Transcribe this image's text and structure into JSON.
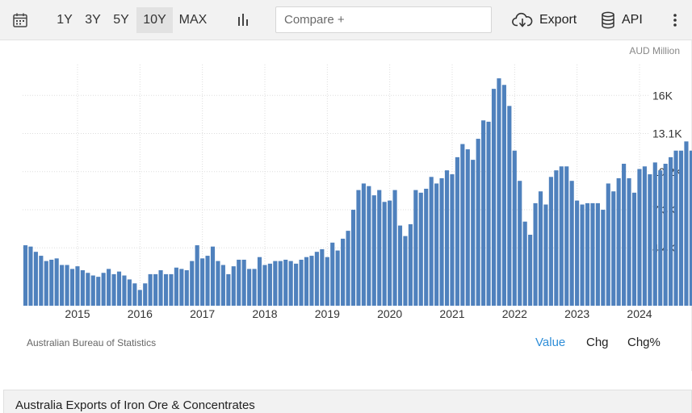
{
  "toolbar": {
    "calendar_icon": "calendar-icon",
    "ranges": [
      "1Y",
      "3Y",
      "5Y",
      "10Y",
      "MAX"
    ],
    "active_range": "10Y",
    "chart_type_icon": "bar-chart-icon",
    "compare_placeholder": "Compare +",
    "export_label": "Export",
    "export_icon": "cloud-download-icon",
    "api_label": "API",
    "api_icon": "database-icon",
    "more_icon": "vertical-ellipsis-icon"
  },
  "source": "Australian Bureau of Statistics",
  "view_tabs": [
    "Value",
    "Chg",
    "Chg%"
  ],
  "active_tab": "Value",
  "footer_title": "Australia Exports of Iron Ore & Concentrates",
  "colors": {
    "bar": "#4f81bd",
    "active_tab": "#2f8ed8",
    "grid": "#dddddd"
  },
  "chart_data": {
    "type": "bar",
    "unit_label": "AUD Million",
    "x_tick_labels": [
      "2015",
      "2016",
      "2017",
      "2018",
      "2019",
      "2020",
      "2021",
      "2022",
      "2023",
      "2024"
    ],
    "y_tick_labels": [
      "4.4K",
      "7.3K",
      "10.2K",
      "13.1K",
      "16K"
    ],
    "y_ticks": [
      4400,
      7300,
      10200,
      13100,
      16000
    ],
    "ylim": [
      0,
      18350
    ],
    "y_axis_position": "right",
    "grid": true,
    "start": "2014-03",
    "end": "2024-03",
    "values": [
      4600,
      4500,
      4100,
      3800,
      3400,
      3500,
      3600,
      3100,
      3100,
      2800,
      3000,
      2700,
      2500,
      2300,
      2200,
      2500,
      2800,
      2400,
      2600,
      2300,
      2000,
      1700,
      1200,
      1700,
      2400,
      2400,
      2700,
      2400,
      2400,
      2900,
      2800,
      2700,
      3400,
      4600,
      3600,
      3800,
      4500,
      3400,
      3100,
      2400,
      3000,
      3500,
      3500,
      2800,
      2800,
      3700,
      3100,
      3200,
      3400,
      3400,
      3500,
      3400,
      3200,
      3500,
      3700,
      3800,
      4100,
      4300,
      3700,
      4800,
      4200,
      5100,
      5700,
      7300,
      8800,
      9300,
      9100,
      8400,
      8800,
      7900,
      8000,
      8800,
      6100,
      5300,
      6200,
      8800,
      8600,
      8900,
      9800,
      9300,
      9700,
      10300,
      10000,
      11300,
      12300,
      11900,
      11100,
      12700,
      14100,
      14000,
      16500,
      17300,
      16800,
      15200,
      11800,
      9500,
      6400,
      5400,
      7800,
      8700,
      7700,
      9800,
      10300,
      10600,
      10600,
      9500,
      8000,
      7700,
      7800,
      7800,
      7800,
      7300,
      9300,
      8700,
      9700,
      10800,
      9700,
      8600,
      10400,
      10600,
      10000,
      10900,
      10300,
      10800,
      11300,
      11800,
      11800,
      12500,
      11800,
      10300
    ]
  }
}
